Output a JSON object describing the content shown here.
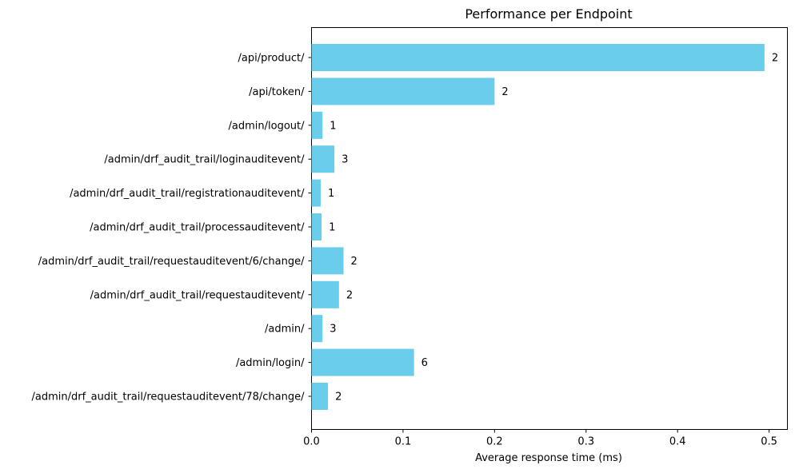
{
  "chart_data": {
    "type": "bar",
    "orientation": "horizontal",
    "title": "Performance per Endpoint",
    "xlabel": "Average response time (ms)",
    "ylabel": "",
    "xlim": [
      0,
      0.52
    ],
    "xticks": [
      "0.0",
      "0.1",
      "0.2",
      "0.3",
      "0.4",
      "0.5"
    ],
    "grid": false,
    "bar_color": "#6bcdec",
    "categories": [
      "/api/product/",
      "/api/token/",
      "/admin/logout/",
      "/admin/drf_audit_trail/loginauditevent/",
      "/admin/drf_audit_trail/registrationauditevent/",
      "/admin/drf_audit_trail/processauditevent/",
      "/admin/drf_audit_trail/requestauditevent/6/change/",
      "/admin/drf_audit_trail/requestauditevent/",
      "/admin/",
      "/admin/login/",
      "/admin/drf_audit_trail/requestauditevent/78/change/"
    ],
    "values": [
      0.495,
      0.2,
      0.012,
      0.025,
      0.01,
      0.011,
      0.035,
      0.03,
      0.012,
      0.112,
      0.018
    ],
    "bar_labels": [
      "2",
      "2",
      "1",
      "3",
      "1",
      "1",
      "2",
      "2",
      "3",
      "6",
      "2"
    ]
  }
}
